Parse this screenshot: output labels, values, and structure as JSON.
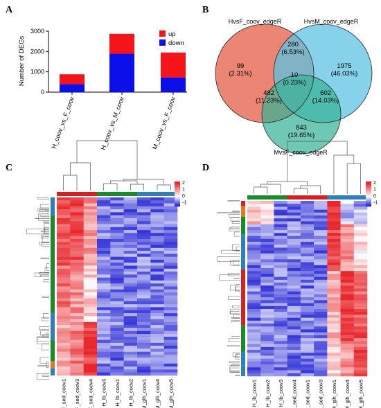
{
  "panels": {
    "A": {
      "letter": "A",
      "chart_data": {
        "type": "bar",
        "stacked": true,
        "categories": [
          "H_coov_vs_F_coov",
          "H_coov_vs_M_coov",
          "M_coov_vs_F_coov"
        ],
        "series": [
          {
            "name": "down",
            "color": "#0b10ea",
            "values": [
              390,
              1890,
              720
            ]
          },
          {
            "name": "up",
            "color": "#f5141a",
            "values": [
              490,
              980,
              1230
            ]
          }
        ],
        "ylabel": "Number of DEGs",
        "ylim": [
          0,
          3000
        ],
        "yticks": [
          0,
          1000,
          2000,
          3000
        ],
        "grid": false,
        "legend_position": "top-right"
      }
    },
    "B": {
      "letter": "B",
      "chart_data": {
        "type": "venn",
        "sets": [
          {
            "name": "HvsF_coov_edgeR",
            "color": "#e8705c"
          },
          {
            "name": "HvsM_coov_edgeR",
            "color": "#5ec3e3"
          },
          {
            "name": "MvsF_coov_edgeR",
            "color": "#38b396"
          }
        ],
        "regions": [
          {
            "sets": [
              "HvsF_coov_edgeR"
            ],
            "count": "99",
            "percent": "(2.31%)"
          },
          {
            "sets": [
              "HvsM_coov_edgeR"
            ],
            "count": "1975",
            "percent": "(46.03%)"
          },
          {
            "sets": [
              "MvsF_coov_edgeR"
            ],
            "count": "843",
            "percent": "(19.65%)"
          },
          {
            "sets": [
              "HvsF_coov_edgeR",
              "HvsM_coov_edgeR"
            ],
            "count": "280",
            "percent": "(6.53%)"
          },
          {
            "sets": [
              "HvsF_coov_edgeR",
              "MvsF_coov_edgeR"
            ],
            "count": "482",
            "percent": "(11.23%)"
          },
          {
            "sets": [
              "HvsM_coov_edgeR",
              "MvsF_coov_edgeR"
            ],
            "count": "602",
            "percent": "(14.03%)"
          },
          {
            "sets": [
              "HvsF_coov_edgeR",
              "HvsM_coov_edgeR",
              "MvsF_coov_edgeR"
            ],
            "count": "10",
            "percent": "(0.23%)"
          }
        ]
      }
    },
    "C": {
      "letter": "C",
      "chart_data": {
        "type": "heatmap",
        "columns": [
          "F_sed_coov1",
          "F_sed_coov3",
          "F_sed_coov4",
          "H_lb_coov3",
          "H_lb_coov1",
          "H_lb_coov2",
          "M_glh_coov1",
          "M_glh_coov4",
          "M_glh_coov5"
        ],
        "column_groups": [
          "F",
          "F",
          "F",
          "H",
          "H",
          "H",
          "M",
          "M",
          "M"
        ],
        "scale": {
          "ticks": [
            "2",
            "1",
            "0",
            "-1"
          ],
          "colors": [
            "#e8262b",
            "#ffffff",
            "#2c2cd6"
          ]
        },
        "column_profile": [
          1.6,
          1.6,
          1.0,
          -0.8,
          -0.8,
          -0.8,
          -0.8,
          -0.8,
          -0.8
        ]
      }
    },
    "D": {
      "letter": "D",
      "chart_data": {
        "type": "heatmap",
        "columns": [
          "H_lb_coov1",
          "H_lb_coov2",
          "H_lb_coov3",
          "F_sed_coov4",
          "F_sed_coov1",
          "F_sed_coov3",
          "M_glh_coov1",
          "M_glh_coov4",
          "M_glh_coov5"
        ],
        "column_groups": [
          "H",
          "H",
          "H",
          "F",
          "F",
          "F",
          "M",
          "M",
          "M"
        ],
        "scale": {
          "ticks": [
            "2",
            "1",
            "0",
            "-1"
          ],
          "colors": [
            "#e8262b",
            "#ffffff",
            "#2c2cd6"
          ]
        },
        "column_profile": [
          -0.8,
          -0.8,
          -0.8,
          -0.8,
          -0.8,
          -0.8,
          1.2,
          1.5,
          1.0
        ]
      }
    },
    "colors": {
      "group_F": "#d42121",
      "group_H": "#1a8a2a",
      "group_M": "#2f7fb9"
    }
  }
}
